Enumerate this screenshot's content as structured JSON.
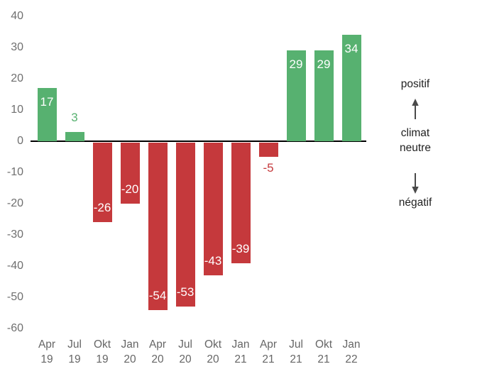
{
  "chart_data": {
    "type": "bar",
    "title": "",
    "categories": [
      {
        "month": "Apr",
        "year": "19"
      },
      {
        "month": "Jul",
        "year": "19"
      },
      {
        "month": "Okt",
        "year": "19"
      },
      {
        "month": "Jan",
        "year": "20"
      },
      {
        "month": "Apr",
        "year": "20"
      },
      {
        "month": "Jul",
        "year": "20"
      },
      {
        "month": "Okt",
        "year": "20"
      },
      {
        "month": "Jan",
        "year": "21"
      },
      {
        "month": "Apr",
        "year": "21"
      },
      {
        "month": "Jul",
        "year": "21"
      },
      {
        "month": "Okt",
        "year": "21"
      },
      {
        "month": "Jan",
        "year": "22"
      }
    ],
    "values": [
      17,
      3,
      -26,
      -20,
      -54,
      -53,
      -43,
      -39,
      -5,
      29,
      29,
      34
    ],
    "value_labels": [
      "17",
      "3",
      "-26",
      "-20",
      "-54",
      "-53",
      "-43",
      "-39",
      "-5",
      "29",
      "29",
      "34"
    ],
    "y_ticks": [
      40,
      30,
      20,
      10,
      0,
      -10,
      -20,
      -30,
      -40,
      -50,
      -60
    ],
    "ylim": [
      -60,
      40
    ],
    "grid": false,
    "legend_position": "none",
    "colors": {
      "positive_bar": "#57b170",
      "negative_bar": "#c5393c",
      "axis_line": "#000000",
      "tick_text": "#6f6f6f",
      "bar_label_inside": "#ffffff",
      "annotation_text": "#222222",
      "arrow": "#4a4a4a"
    },
    "annotations": {
      "positive": "positif",
      "neutral_line1": "climat",
      "neutral_line2": "neutre",
      "negative": "négatif"
    },
    "icons": {
      "up": "arrow-up-icon",
      "down": "arrow-down-icon"
    }
  }
}
